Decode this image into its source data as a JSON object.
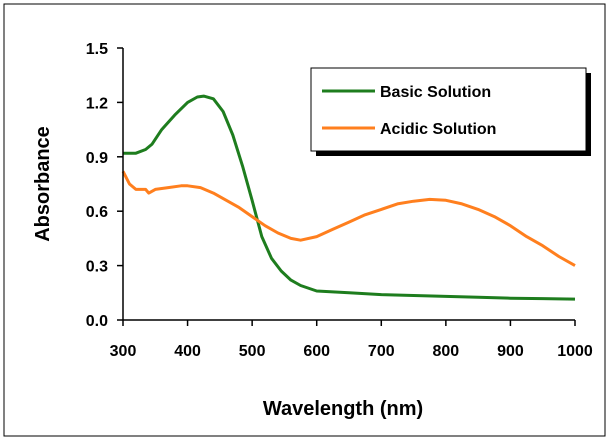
{
  "chart_data": {
    "type": "line",
    "xlabel": "Wavelength (nm)",
    "ylabel": "Absorbance",
    "xlim": [
      300,
      1000
    ],
    "ylim": [
      0,
      1.5
    ],
    "x_ticks": [
      "300",
      "400",
      "500",
      "600",
      "700",
      "800",
      "900",
      "1000"
    ],
    "y_ticks": [
      "0.0",
      "0.3",
      "0.6",
      "0.9",
      "1.2",
      "1.5"
    ],
    "grid": false,
    "legend_position": "top-right",
    "series": [
      {
        "name": "Basic Solution",
        "color": "#1e7d1e",
        "x": [
          300,
          320,
          335,
          345,
          360,
          380,
          400,
          415,
          425,
          440,
          455,
          470,
          485,
          500,
          515,
          530,
          545,
          560,
          575,
          600,
          650,
          700,
          750,
          800,
          850,
          900,
          950,
          1000
        ],
        "y": [
          0.92,
          0.92,
          0.94,
          0.97,
          1.05,
          1.13,
          1.2,
          1.23,
          1.235,
          1.22,
          1.15,
          1.02,
          0.85,
          0.66,
          0.46,
          0.34,
          0.27,
          0.22,
          0.19,
          0.16,
          0.15,
          0.14,
          0.135,
          0.13,
          0.125,
          0.12,
          0.118,
          0.115
        ]
      },
      {
        "name": "Acidic Solution",
        "color": "#ff7f1e",
        "x": [
          300,
          310,
          320,
          335,
          340,
          350,
          370,
          390,
          400,
          420,
          440,
          460,
          480,
          500,
          520,
          540,
          560,
          575,
          600,
          625,
          650,
          675,
          700,
          725,
          750,
          775,
          800,
          825,
          850,
          875,
          900,
          925,
          950,
          975,
          1000
        ],
        "y": [
          0.82,
          0.75,
          0.72,
          0.72,
          0.7,
          0.72,
          0.73,
          0.74,
          0.74,
          0.73,
          0.7,
          0.66,
          0.62,
          0.57,
          0.52,
          0.48,
          0.45,
          0.44,
          0.46,
          0.5,
          0.54,
          0.58,
          0.61,
          0.64,
          0.655,
          0.665,
          0.66,
          0.64,
          0.61,
          0.57,
          0.52,
          0.46,
          0.41,
          0.35,
          0.3
        ]
      }
    ]
  }
}
